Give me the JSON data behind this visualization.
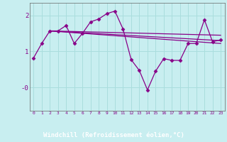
{
  "background_color": "#c8eef0",
  "plot_bg_color": "#c8eef0",
  "label_band_color": "#880088",
  "line_color": "#880088",
  "marker_color": "#880088",
  "tick_color": "#880088",
  "x_label": "Windchill (Refroidissement éolien,°C)",
  "xlim": [
    -0.5,
    23.5
  ],
  "ylim": [
    -0.65,
    2.35
  ],
  "xticks": [
    0,
    1,
    2,
    3,
    4,
    5,
    6,
    7,
    8,
    9,
    10,
    11,
    12,
    13,
    14,
    15,
    16,
    17,
    18,
    19,
    20,
    21,
    22,
    23
  ],
  "yticks": [
    0.0,
    1.0,
    2.0
  ],
  "ytick_labels": [
    "-0",
    "1",
    "2"
  ],
  "series1_x": [
    0,
    1,
    2,
    3,
    4,
    5,
    6,
    7,
    8,
    9,
    10,
    11,
    12,
    13,
    14,
    15,
    16,
    17,
    18,
    19,
    20,
    21,
    22,
    23
  ],
  "series1_y": [
    0.82,
    1.22,
    1.57,
    1.57,
    1.72,
    1.22,
    1.5,
    1.82,
    1.9,
    2.05,
    2.12,
    1.62,
    0.77,
    0.47,
    -0.07,
    0.45,
    0.8,
    0.75,
    0.75,
    1.22,
    1.22,
    1.88,
    1.27,
    1.32
  ],
  "series2_x": [
    2,
    23
  ],
  "series2_y": [
    1.57,
    1.45
  ],
  "series3_x": [
    2,
    23
  ],
  "series3_y": [
    1.57,
    1.22
  ],
  "series4_x": [
    2,
    23
  ],
  "series4_y": [
    1.57,
    1.3
  ]
}
